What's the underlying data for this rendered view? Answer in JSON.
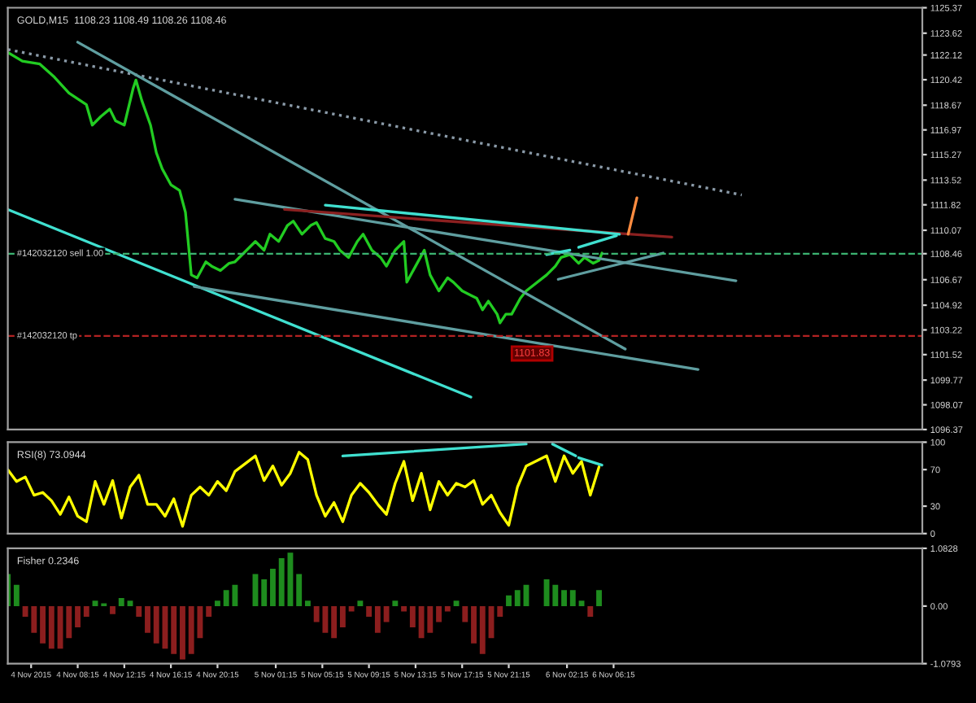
{
  "chart_data": [
    {
      "type": "line",
      "title": "GOLD,M15  1108.23 1108.49 1108.26 1108.46",
      "xlim": [
        "2015-11-04T02:15",
        "2015-11-07T08:45"
      ],
      "ylim": [
        1096.37,
        1125.37
      ],
      "yticks": [
        1096.37,
        1098.07,
        1099.77,
        1101.52,
        1103.22,
        1104.92,
        1106.67,
        1108.46,
        1110.07,
        1111.82,
        1113.52,
        1115.27,
        1116.97,
        1118.67,
        1120.42,
        1122.12,
        1123.62,
        1125.37
      ],
      "tick_labels": "y",
      "series": [
        {
          "color": "#22cc22",
          "x": [
            "2015-11-04T02:15",
            "2015-11-04T03:30",
            "2015-11-04T05:00",
            "2015-11-04T06:15",
            "2015-11-04T07:30",
            "2015-11-04T09:00",
            "2015-11-04T09:30",
            "2015-11-04T10:15",
            "2015-11-04T11:00",
            "2015-11-04T11:30",
            "2015-11-04T12:15",
            "2015-11-04T13:00",
            "2015-11-04T13:15",
            "2015-11-04T13:45",
            "2015-11-04T14:30",
            "2015-11-04T15:00",
            "2015-11-04T15:30",
            "2015-11-04T16:15",
            "2015-11-04T17:00",
            "2015-11-04T17:30",
            "2015-11-04T18:00",
            "2015-11-04T18:30",
            "2015-11-04T19:15",
            "2015-11-04T19:45",
            "2015-11-04T20:30",
            "2015-11-04T21:15",
            "2015-11-04T21:45",
            "2015-11-04T23:30",
            "2015-11-05T00:15",
            "2015-11-05T00:45",
            "2015-11-05T01:30",
            "2015-11-05T02:15",
            "2015-11-05T02:45",
            "2015-11-05T03:30",
            "2015-11-05T04:15",
            "2015-11-05T04:45",
            "2015-11-05T05:30",
            "2015-11-05T06:15",
            "2015-11-05T06:45",
            "2015-11-05T07:30",
            "2015-11-05T08:15",
            "2015-11-05T08:45",
            "2015-11-05T09:30",
            "2015-11-05T10:15",
            "2015-11-05T10:45",
            "2015-11-05T11:30",
            "2015-11-05T12:15",
            "2015-11-05T12:30",
            "2015-11-05T13:15",
            "2015-11-05T14:00",
            "2015-11-05T14:30",
            "2015-11-05T15:15",
            "2015-11-05T16:00",
            "2015-11-05T16:30",
            "2015-11-05T17:15",
            "2015-11-05T18:00",
            "2015-11-05T18:30",
            "2015-11-05T19:00",
            "2015-11-05T19:30",
            "2015-11-05T20:15",
            "2015-11-05T20:30",
            "2015-11-05T21:00",
            "2015-11-05T21:30",
            "2015-11-05T22:15",
            "2015-11-05T22:45",
            "2015-11-06T00:30",
            "2015-11-06T01:15",
            "2015-11-06T01:45",
            "2015-11-06T02:30",
            "2015-11-06T03:15",
            "2015-11-06T03:45",
            "2015-11-06T04:30",
            "2015-11-06T05:00",
            "2015-11-06T05:15"
          ],
          "values": [
            1122.3,
            1121.7,
            1121.5,
            1120.6,
            1119.5,
            1118.7,
            1117.3,
            1117.9,
            1118.4,
            1117.6,
            1117.3,
            1119.8,
            1120.4,
            1119.0,
            1117.3,
            1115.4,
            1114.3,
            1113.2,
            1112.8,
            1111.3,
            1107.0,
            1106.8,
            1107.9,
            1107.6,
            1107.3,
            1107.8,
            1107.9,
            1109.3,
            1108.7,
            1109.8,
            1109.3,
            1110.4,
            1110.7,
            1109.8,
            1110.4,
            1110.6,
            1109.5,
            1109.3,
            1108.7,
            1108.2,
            1109.3,
            1109.8,
            1108.7,
            1108.2,
            1107.6,
            1108.7,
            1109.3,
            1106.5,
            1107.6,
            1108.7,
            1107.0,
            1105.9,
            1106.8,
            1106.5,
            1105.9,
            1105.6,
            1105.4,
            1104.6,
            1105.2,
            1104.3,
            1103.7,
            1104.3,
            1104.3,
            1105.4,
            1105.9,
            1107.0,
            1107.6,
            1108.2,
            1108.4,
            1107.8,
            1108.2,
            1107.8,
            1108.0,
            1108.5
          ]
        },
        {
          "color": "#8a9aa8",
          "line_style": "dotted",
          "x": [
            "2015-11-04T02:15",
            "2015-11-06T17:15"
          ],
          "values": [
            1122.5,
            1112.5
          ]
        },
        {
          "color": "#40e0d0",
          "x": [
            "2015-11-04T02:15",
            "2015-11-05T18:00"
          ],
          "values": [
            1111.5,
            1098.6
          ]
        },
        {
          "color": "#5f9ea0",
          "x": [
            "2015-11-04T08:15",
            "2015-11-06T07:15"
          ],
          "values": [
            1123.0,
            1101.9
          ]
        },
        {
          "color": "#5f9ea0",
          "x": [
            "2015-11-04T21:45",
            "2015-11-06T16:45"
          ],
          "values": [
            1112.2,
            1106.6
          ]
        },
        {
          "color": "#5f9ea0",
          "x": [
            "2015-11-04T18:15",
            "2015-11-06T13:30"
          ],
          "values": [
            1106.2,
            1100.5
          ]
        },
        {
          "color": "#8b2020",
          "x": [
            "2015-11-05T02:00",
            "2015-11-06T11:15"
          ],
          "values": [
            1111.5,
            1109.6
          ]
        },
        {
          "color": "#40e0d0",
          "x": [
            "2015-11-05T05:30",
            "2015-11-06T06:45"
          ],
          "values": [
            1111.8,
            1109.8
          ]
        },
        {
          "color": "#40e0d0",
          "x": [
            "2015-11-06T00:30",
            "2015-11-06T02:30"
          ],
          "values": [
            1108.4,
            1108.7
          ]
        },
        {
          "color": "#40e0d0",
          "x": [
            "2015-11-06T03:15",
            "2015-11-06T06:30"
          ],
          "values": [
            1108.9,
            1109.7
          ]
        },
        {
          "color": "#5f9ea0",
          "x": [
            "2015-11-06T01:30",
            "2015-11-06T10:30"
          ],
          "values": [
            1106.7,
            1108.5
          ]
        },
        {
          "color": "#ff8c40",
          "x": [
            "2015-11-06T08:15",
            "2015-11-06T07:30"
          ],
          "values": [
            1112.3,
            1109.8
          ]
        }
      ],
      "ref_lines": [
        {
          "axis": "y",
          "value": 1108.46,
          "label": "#142032120 sell 1.00",
          "color": "#3cb371",
          "line_style": "dashed"
        },
        {
          "axis": "y",
          "value": 1102.8,
          "label": "#142032120 tp",
          "color": "#b22222",
          "line_style": "dashed"
        }
      ],
      "annotations": [
        {
          "text": "1101.83",
          "x": "2015-11-05T23:15",
          "y": 1101.6
        }
      ]
    },
    {
      "type": "line",
      "title": "RSI(8) 73.0944",
      "xlim": [
        "2015-11-04T02:15",
        "2015-11-07T08:45"
      ],
      "ylim": [
        0,
        100
      ],
      "yticks": [
        0,
        30,
        70,
        100
      ],
      "tick_labels": "y",
      "x": [
        "2015-11-04T02:15",
        "2015-11-04T03:00",
        "2015-11-04T03:45",
        "2015-11-04T04:30",
        "2015-11-04T05:15",
        "2015-11-04T06:00",
        "2015-11-04T06:45",
        "2015-11-04T07:30",
        "2015-11-04T08:15",
        "2015-11-04T09:00",
        "2015-11-04T09:45",
        "2015-11-04T10:30",
        "2015-11-04T11:15",
        "2015-11-04T12:00",
        "2015-11-04T12:45",
        "2015-11-04T13:30",
        "2015-11-04T14:15",
        "2015-11-04T15:00",
        "2015-11-04T15:45",
        "2015-11-04T16:30",
        "2015-11-04T17:15",
        "2015-11-04T18:00",
        "2015-11-04T18:45",
        "2015-11-04T19:30",
        "2015-11-04T20:15",
        "2015-11-04T21:00",
        "2015-11-04T21:45",
        "2015-11-04T23:30",
        "2015-11-05T00:15",
        "2015-11-05T01:00",
        "2015-11-05T01:45",
        "2015-11-05T02:30",
        "2015-11-05T03:15",
        "2015-11-05T04:00",
        "2015-11-05T04:45",
        "2015-11-05T05:30",
        "2015-11-05T06:15",
        "2015-11-05T07:00",
        "2015-11-05T07:45",
        "2015-11-05T08:30",
        "2015-11-05T09:15",
        "2015-11-05T10:00",
        "2015-11-05T10:45",
        "2015-11-05T11:30",
        "2015-11-05T12:15",
        "2015-11-05T13:00",
        "2015-11-05T13:45",
        "2015-11-05T14:30",
        "2015-11-05T15:15",
        "2015-11-05T16:00",
        "2015-11-05T16:45",
        "2015-11-05T17:30",
        "2015-11-05T18:15",
        "2015-11-05T19:00",
        "2015-11-05T19:45",
        "2015-11-05T20:30",
        "2015-11-05T21:15",
        "2015-11-05T22:00",
        "2015-11-05T22:45",
        "2015-11-06T00:30",
        "2015-11-06T01:15",
        "2015-11-06T02:00",
        "2015-11-06T02:45",
        "2015-11-06T03:30",
        "2015-11-06T04:15",
        "2015-11-06T05:00"
      ],
      "series": [
        {
          "color": "#ffff00",
          "values": [
            70,
            57,
            62,
            42,
            45,
            36,
            21,
            40,
            19,
            13,
            57,
            32,
            58,
            17,
            51,
            64,
            32,
            32,
            19,
            38,
            8,
            42,
            51,
            42,
            57,
            47,
            68,
            85,
            58,
            74,
            53,
            66,
            89,
            81,
            42,
            19,
            34,
            13,
            42,
            55,
            45,
            32,
            21,
            55,
            79,
            36,
            66,
            26,
            57,
            42,
            55,
            51,
            58,
            32,
            42,
            23,
            9,
            51,
            74,
            85,
            57,
            85,
            66,
            79,
            42,
            73
          ]
        },
        {
          "color": "#40e0d0",
          "x": [
            "2015-11-05T07:00",
            "2015-11-05T22:45"
          ],
          "values": [
            85,
            98
          ]
        },
        {
          "color": "#40e0d0",
          "x": [
            "2015-11-06T01:00",
            "2015-11-06T03:00"
          ],
          "values": [
            98,
            85
          ]
        },
        {
          "color": "#40e0d0",
          "x": [
            "2015-11-06T03:15",
            "2015-11-06T05:15"
          ],
          "values": [
            83,
            75
          ]
        }
      ]
    },
    {
      "type": "bar",
      "title": "Fisher 0.2346",
      "xlim": [
        "2015-11-04T02:15",
        "2015-11-07T08:45"
      ],
      "ylim": [
        -1.0793,
        1.0828
      ],
      "yticks": [
        -1.0793,
        {
          "value": 0,
          "label": "0.00"
        },
        1.0828
      ],
      "xticks": [
        {
          "value": "2015-11-04T04:15",
          "label": "4 Nov 2015"
        },
        {
          "value": "2015-11-04T08:15",
          "label": "4 Nov 08:15"
        },
        {
          "value": "2015-11-04T12:15",
          "label": "4 Nov 12:15"
        },
        {
          "value": "2015-11-04T16:15",
          "label": "4 Nov 16:15"
        },
        {
          "value": "2015-11-04T20:15",
          "label": "4 Nov 20:15"
        },
        {
          "value": "2015-11-05T01:15",
          "label": "5 Nov 01:15"
        },
        {
          "value": "2015-11-05T05:15",
          "label": "5 Nov 05:15"
        },
        {
          "value": "2015-11-05T09:15",
          "label": "5 Nov 09:15"
        },
        {
          "value": "2015-11-05T13:15",
          "label": "5 Nov 13:15"
        },
        {
          "value": "2015-11-05T17:15",
          "label": "5 Nov 17:15"
        },
        {
          "value": "2015-11-05T21:15",
          "label": "5 Nov 21:15"
        },
        {
          "value": "2015-11-06T02:15",
          "label": "6 Nov 02:15"
        },
        {
          "value": "2015-11-06T06:15",
          "label": "6 Nov 06:15"
        }
      ],
      "x": [
        "2015-11-04T02:15",
        "2015-11-04T03:00",
        "2015-11-04T03:45",
        "2015-11-04T04:30",
        "2015-11-04T05:15",
        "2015-11-04T06:00",
        "2015-11-04T06:45",
        "2015-11-04T07:30",
        "2015-11-04T08:15",
        "2015-11-04T09:00",
        "2015-11-04T09:45",
        "2015-11-04T10:30",
        "2015-11-04T11:15",
        "2015-11-04T12:00",
        "2015-11-04T12:45",
        "2015-11-04T13:30",
        "2015-11-04T14:15",
        "2015-11-04T15:00",
        "2015-11-04T15:45",
        "2015-11-04T16:30",
        "2015-11-04T17:15",
        "2015-11-04T18:00",
        "2015-11-04T18:45",
        "2015-11-04T19:30",
        "2015-11-04T20:15",
        "2015-11-04T21:00",
        "2015-11-04T21:45",
        "2015-11-04T23:30",
        "2015-11-05T00:15",
        "2015-11-05T01:00",
        "2015-11-05T01:45",
        "2015-11-05T02:30",
        "2015-11-05T03:15",
        "2015-11-05T04:00",
        "2015-11-05T04:45",
        "2015-11-05T05:30",
        "2015-11-05T06:15",
        "2015-11-05T07:00",
        "2015-11-05T07:45",
        "2015-11-05T08:30",
        "2015-11-05T09:15",
        "2015-11-05T10:00",
        "2015-11-05T10:45",
        "2015-11-05T11:30",
        "2015-11-05T12:15",
        "2015-11-05T13:00",
        "2015-11-05T13:45",
        "2015-11-05T14:30",
        "2015-11-05T15:15",
        "2015-11-05T16:00",
        "2015-11-05T16:45",
        "2015-11-05T17:30",
        "2015-11-05T18:15",
        "2015-11-05T19:00",
        "2015-11-05T19:45",
        "2015-11-05T20:30",
        "2015-11-05T21:15",
        "2015-11-05T22:00",
        "2015-11-05T22:45",
        "2015-11-06T00:30",
        "2015-11-06T01:15",
        "2015-11-06T02:00",
        "2015-11-06T02:45",
        "2015-11-06T03:30",
        "2015-11-06T04:15",
        "2015-11-06T05:00"
      ],
      "series": [
        {
          "values": [
            0.6,
            0.4,
            -0.2,
            -0.5,
            -0.7,
            -0.8,
            -0.8,
            -0.6,
            -0.4,
            -0.2,
            0.1,
            0.05,
            -0.15,
            0.15,
            0.1,
            -0.2,
            -0.5,
            -0.7,
            -0.8,
            -0.9,
            -1.0,
            -0.9,
            -0.6,
            -0.2,
            0.1,
            0.3,
            0.4,
            0.6,
            0.5,
            0.7,
            0.9,
            1.0,
            0.6,
            0.1,
            -0.3,
            -0.5,
            -0.6,
            -0.4,
            -0.1,
            0.1,
            -0.2,
            -0.5,
            -0.3,
            0.1,
            -0.1,
            -0.4,
            -0.6,
            -0.5,
            -0.3,
            -0.1,
            0.1,
            -0.3,
            -0.7,
            -0.9,
            -0.6,
            -0.2,
            0.2,
            0.3,
            0.4,
            0.5,
            0.4,
            0.3,
            0.3,
            0.1,
            -0.2,
            0.3
          ],
          "colors": [
            "#1e8c1e",
            "#1e8c1e",
            "#8c1e1e",
            "#8c1e1e",
            "#8c1e1e",
            "#8c1e1e",
            "#8c1e1e",
            "#8c1e1e",
            "#8c1e1e",
            "#8c1e1e",
            "#1e8c1e",
            "#1e8c1e",
            "#8c1e1e",
            "#1e8c1e",
            "#1e8c1e",
            "#8c1e1e",
            "#8c1e1e",
            "#8c1e1e",
            "#8c1e1e",
            "#8c1e1e",
            "#8c1e1e",
            "#8c1e1e",
            "#8c1e1e",
            "#8c1e1e",
            "#1e8c1e",
            "#1e8c1e",
            "#1e8c1e",
            "#1e8c1e",
            "#1e8c1e",
            "#1e8c1e",
            "#1e8c1e",
            "#1e8c1e",
            "#1e8c1e",
            "#1e8c1e",
            "#8c1e1e",
            "#8c1e1e",
            "#8c1e1e",
            "#8c1e1e",
            "#8c1e1e",
            "#1e8c1e",
            "#8c1e1e",
            "#8c1e1e",
            "#8c1e1e",
            "#1e8c1e",
            "#8c1e1e",
            "#8c1e1e",
            "#8c1e1e",
            "#8c1e1e",
            "#8c1e1e",
            "#8c1e1e",
            "#1e8c1e",
            "#8c1e1e",
            "#8c1e1e",
            "#8c1e1e",
            "#8c1e1e",
            "#8c1e1e",
            "#1e8c1e",
            "#1e8c1e",
            "#1e8c1e",
            "#1e8c1e",
            "#1e8c1e",
            "#1e8c1e",
            "#1e8c1e",
            "#1e8c1e",
            "#8c1e1e",
            "#1e8c1e"
          ]
        }
      ]
    }
  ]
}
